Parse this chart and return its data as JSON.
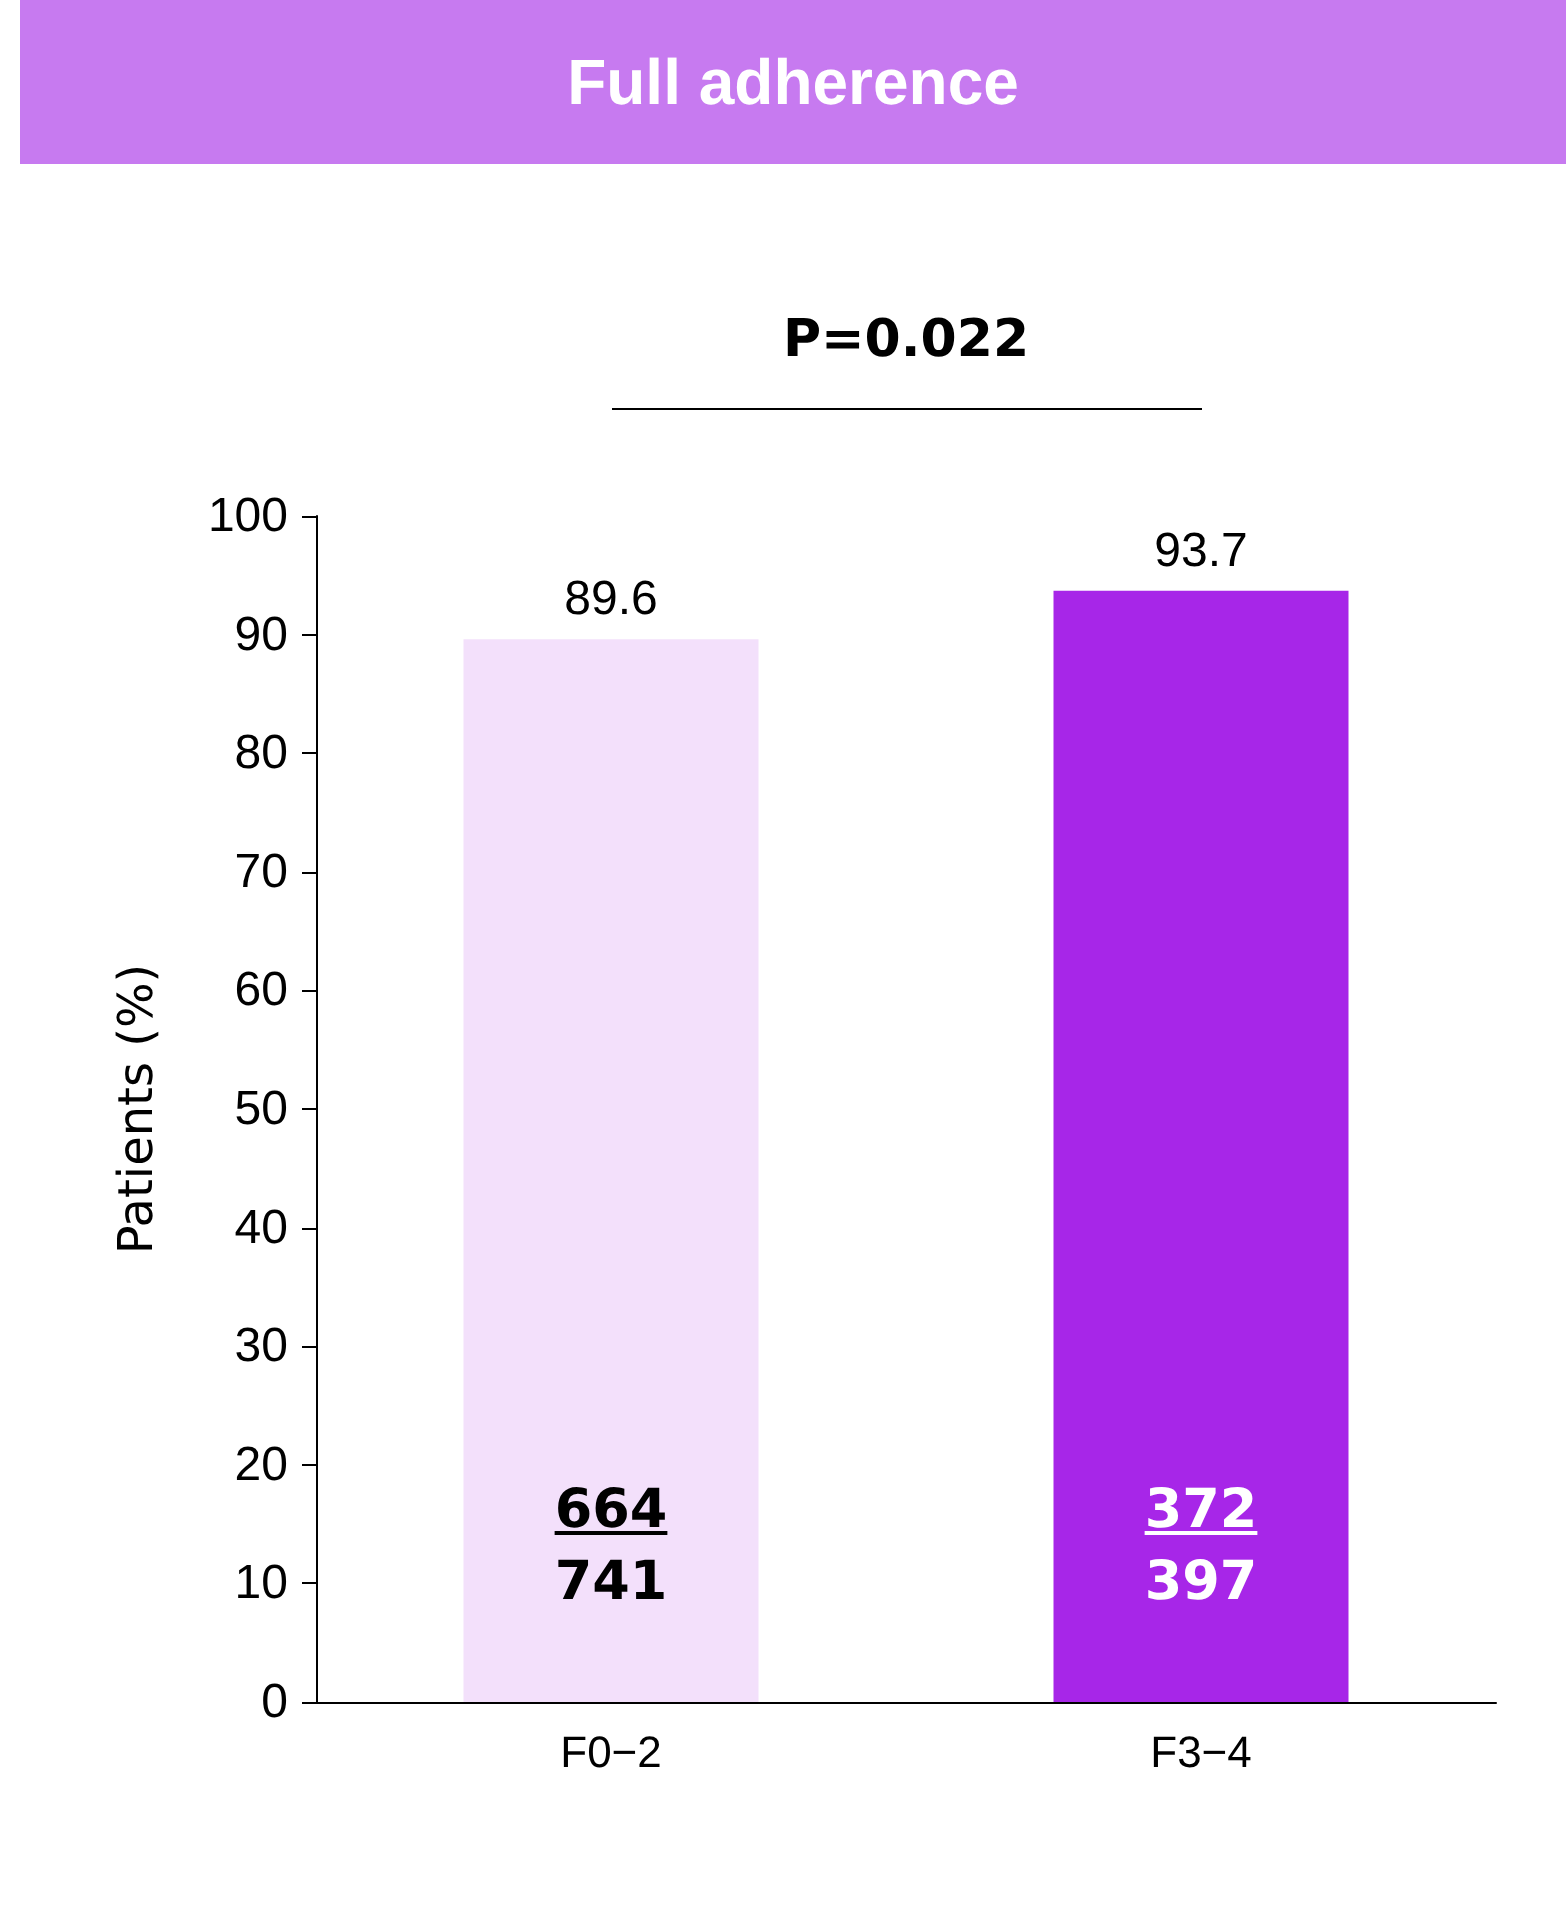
{
  "chart_data": {
    "type": "bar",
    "title": "Full adherence",
    "ylabel": "Patients (%)",
    "categories": [
      "F0−2",
      "F3−4"
    ],
    "values": [
      89.6,
      93.7
    ],
    "colors": [
      "#f3e0fb",
      "#a726e8"
    ],
    "ylim": [
      0,
      100
    ],
    "yticks": [
      0,
      10,
      20,
      30,
      40,
      50,
      60,
      70,
      80,
      90,
      100
    ],
    "grid": false,
    "data_labels": true,
    "annotations": [
      "P=0.022",
      "664",
      "741",
      "372",
      "397"
    ]
  }
}
